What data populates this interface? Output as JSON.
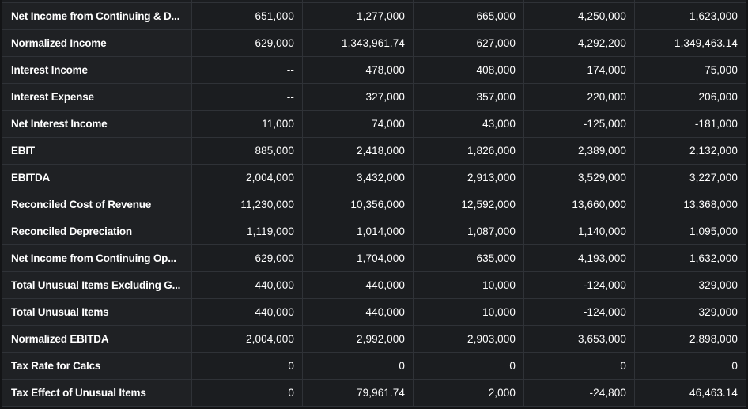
{
  "table": {
    "rows": [
      {
        "label": "Net Income from Continuing & D...",
        "values": [
          "651,000",
          "1,277,000",
          "665,000",
          "4,250,000",
          "1,623,000"
        ]
      },
      {
        "label": "Normalized Income",
        "values": [
          "629,000",
          "1,343,961.74",
          "627,000",
          "4,292,200",
          "1,349,463.14"
        ]
      },
      {
        "label": "Interest Income",
        "values": [
          "--",
          "478,000",
          "408,000",
          "174,000",
          "75,000"
        ]
      },
      {
        "label": "Interest Expense",
        "values": [
          "--",
          "327,000",
          "357,000",
          "220,000",
          "206,000"
        ]
      },
      {
        "label": "Net Interest Income",
        "values": [
          "11,000",
          "74,000",
          "43,000",
          "-125,000",
          "-181,000"
        ]
      },
      {
        "label": "EBIT",
        "values": [
          "885,000",
          "2,418,000",
          "1,826,000",
          "2,389,000",
          "2,132,000"
        ]
      },
      {
        "label": "EBITDA",
        "values": [
          "2,004,000",
          "3,432,000",
          "2,913,000",
          "3,529,000",
          "3,227,000"
        ]
      },
      {
        "label": "Reconciled Cost of Revenue",
        "values": [
          "11,230,000",
          "10,356,000",
          "12,592,000",
          "13,660,000",
          "13,368,000"
        ]
      },
      {
        "label": "Reconciled Depreciation",
        "values": [
          "1,119,000",
          "1,014,000",
          "1,087,000",
          "1,140,000",
          "1,095,000"
        ]
      },
      {
        "label": "Net Income from Continuing Op...",
        "values": [
          "629,000",
          "1,704,000",
          "635,000",
          "4,193,000",
          "1,632,000"
        ]
      },
      {
        "label": "Total Unusual Items Excluding G...",
        "values": [
          "440,000",
          "440,000",
          "10,000",
          "-124,000",
          "329,000"
        ]
      },
      {
        "label": "Total Unusual Items",
        "values": [
          "440,000",
          "440,000",
          "10,000",
          "-124,000",
          "329,000"
        ]
      },
      {
        "label": "Normalized EBITDA",
        "values": [
          "2,004,000",
          "2,992,000",
          "2,903,000",
          "3,653,000",
          "2,898,000"
        ]
      },
      {
        "label": "Tax Rate for Calcs",
        "values": [
          "0",
          "0",
          "0",
          "0",
          "0"
        ]
      },
      {
        "label": "Tax Effect of Unusual Items",
        "values": [
          "0",
          "79,961.74",
          "2,000",
          "-24,800",
          "46,463.14"
        ]
      }
    ]
  }
}
